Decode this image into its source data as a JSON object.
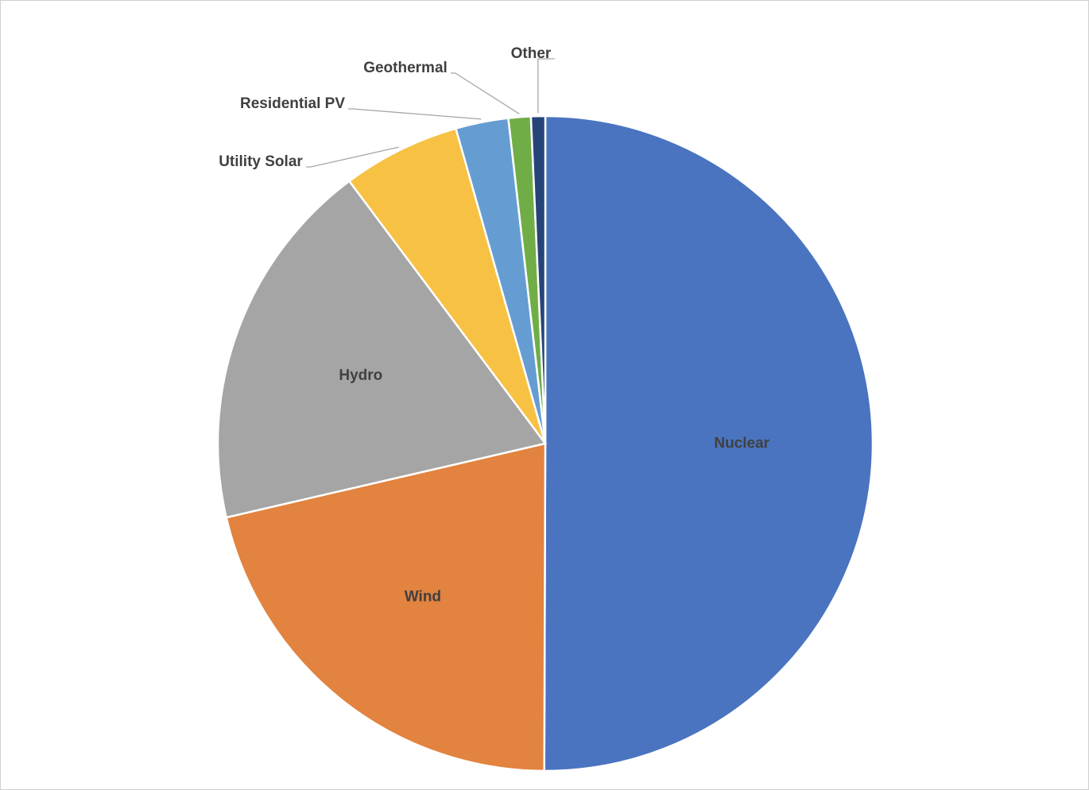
{
  "chart_data": {
    "type": "pie",
    "categories": [
      "Nuclear",
      "Wind",
      "Hydro",
      "Utility Solar",
      "Residential PV",
      "Geothermal",
      "Other"
    ],
    "values": [
      50,
      21.3,
      18.4,
      5.8,
      2.6,
      1.1,
      0.7
    ],
    "colors": [
      "#4a74c0",
      "#e2833f",
      "#a5a5a5",
      "#f7c143",
      "#659dd3",
      "#70ad47",
      "#264478"
    ]
  }
}
